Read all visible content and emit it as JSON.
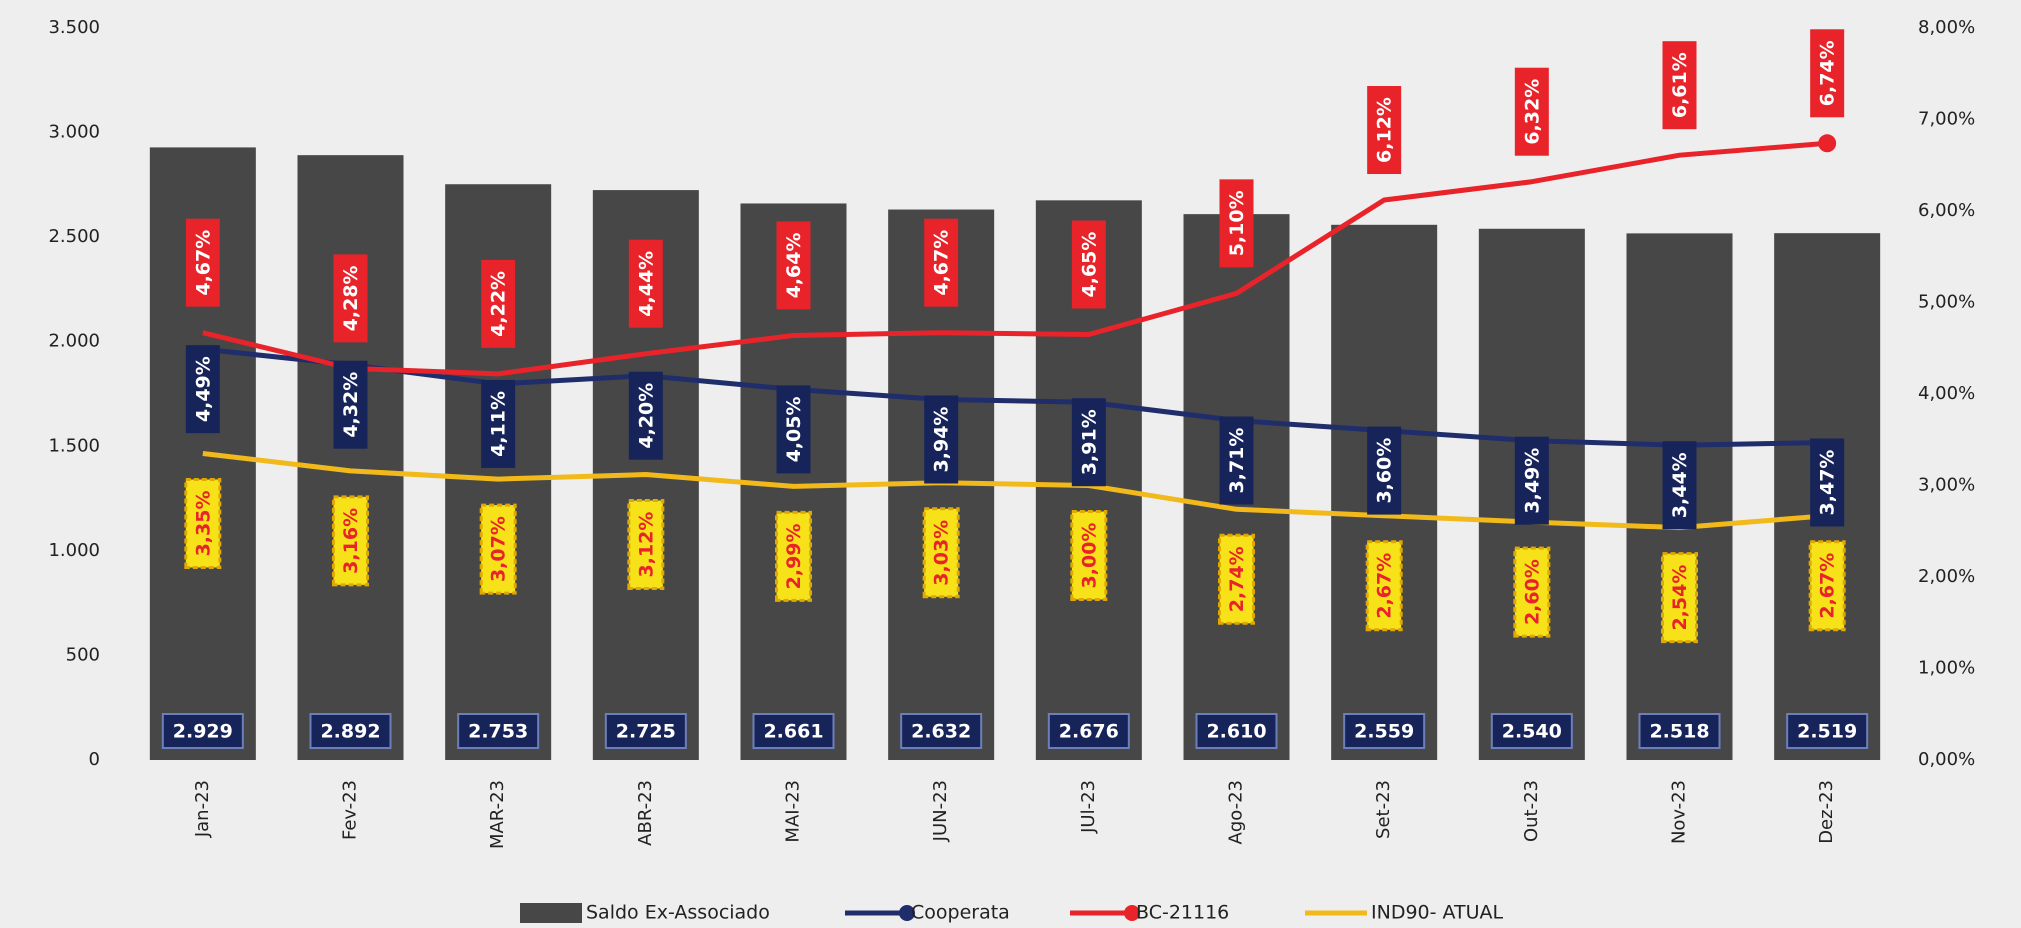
{
  "chart_data": {
    "type": "bar-line",
    "categories": [
      "Jan-23",
      "Fev-23",
      "MAR-23",
      "ABR-23",
      "MAI-23",
      "JUN-23",
      "JUl-23",
      "Ago-23",
      "Set-23",
      "Out-23",
      "Nov-23",
      "Dez-23"
    ],
    "ylim": [
      0,
      3500
    ],
    "yticks": [
      0,
      500,
      {
        "value": 1000,
        "label": "1.000"
      },
      {
        "value": 1500,
        "label": "1.500"
      },
      {
        "value": 2000,
        "label": "2.000"
      },
      {
        "value": 2500,
        "label": "2.500"
      },
      {
        "value": 3000,
        "label": "3.000"
      },
      {
        "value": 3500,
        "label": "3.500"
      }
    ],
    "y2lim": [
      0,
      8
    ],
    "y2ticks": [
      {
        "value": 0,
        "label": "0,00%"
      },
      {
        "value": 1,
        "label": "1,00%"
      },
      {
        "value": 2,
        "label": "2,00%"
      },
      {
        "value": 3,
        "label": "3,00%"
      },
      {
        "value": 4,
        "label": "4,00%"
      },
      {
        "value": 5,
        "label": "5,00%"
      },
      {
        "value": 6,
        "label": "6,00%"
      },
      {
        "value": 7,
        "label": "7,00%"
      },
      {
        "value": 8,
        "label": "8,00%"
      }
    ],
    "series": [
      {
        "name": "Saldo Ex-Associado",
        "type": "bar",
        "color": "#474747",
        "values": [
          2929,
          2892,
          2753,
          2725,
          2661,
          2632,
          2676,
          2610,
          2559,
          2540,
          2518,
          2519
        ],
        "value_labels": [
          "2.929",
          "2.892",
          "2.753",
          "2.725",
          "2.661",
          "2.632",
          "2.676",
          "2.610",
          "2.559",
          "2.540",
          "2.518",
          "2.519"
        ]
      },
      {
        "name": "Cooperata",
        "type": "line",
        "axis": "y2",
        "color": "#1f2d6b",
        "values": [
          4.49,
          4.32,
          4.11,
          4.2,
          4.05,
          3.94,
          3.91,
          3.71,
          3.6,
          3.49,
          3.44,
          3.47
        ],
        "value_labels": [
          "4,49%",
          "4,32%",
          "4,11%",
          "4,20%",
          "4,05%",
          "3,94%",
          "3,91%",
          "3,71%",
          "3,60%",
          "3,49%",
          "3,44%",
          "3,47%"
        ]
      },
      {
        "name": "BC-21116",
        "type": "line",
        "axis": "y2",
        "color": "#e8232a",
        "values": [
          4.67,
          4.28,
          4.22,
          4.44,
          4.64,
          4.67,
          4.65,
          5.1,
          6.12,
          6.32,
          6.61,
          6.74
        ],
        "value_labels": [
          "4,67%",
          "4,28%",
          "4,22%",
          "4,44%",
          "4,64%",
          "4,67%",
          "4,65%",
          "5,10%",
          "6,12%",
          "6,32%",
          "6,61%",
          "6,74%"
        ]
      },
      {
        "name": "IND90- ATUAL",
        "type": "line",
        "axis": "y2",
        "color": "#f2b91a",
        "values": [
          3.35,
          3.16,
          3.07,
          3.12,
          2.99,
          3.03,
          3.0,
          2.74,
          2.67,
          2.6,
          2.54,
          2.67
        ],
        "value_labels": [
          "3,35%",
          "3,16%",
          "3,07%",
          "3,12%",
          "2,99%",
          "3,03%",
          "3,00%",
          "2,74%",
          "2,67%",
          "2,60%",
          "2,54%",
          "2,67%"
        ]
      }
    ]
  }
}
